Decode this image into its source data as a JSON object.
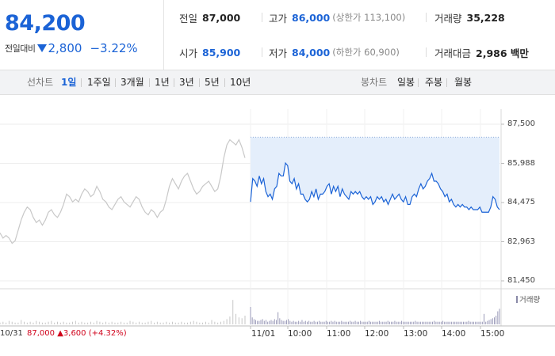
{
  "summary": {
    "price": "84,200",
    "change_label": "전일대비",
    "change_value": "2,800",
    "change_pct": "−3.22%"
  },
  "stats": {
    "prev_close": {
      "label": "전일",
      "value": "87,000"
    },
    "high": {
      "label": "고가",
      "value": "86,000",
      "extra": "(상한가 113,100)"
    },
    "volume": {
      "label": "거래량",
      "value": "35,228"
    },
    "open": {
      "label": "시가",
      "value": "85,900"
    },
    "low": {
      "label": "저가",
      "value": "84,000",
      "extra": "(하한가 60,900)"
    },
    "trade_value": {
      "label": "거래대금",
      "value": "2,986 백만"
    }
  },
  "line_tabs": {
    "label": "선차트",
    "items": [
      "1일",
      "1주일",
      "3개월",
      "1년",
      "3년",
      "5년",
      "10년"
    ],
    "active": "1일"
  },
  "candle_tabs": {
    "label": "봉차트",
    "items": [
      "일봉",
      "주봉",
      "월봉"
    ]
  },
  "chart": {
    "y_ticks": [
      "87,500",
      "85,988",
      "84,475",
      "82,963",
      "81,450"
    ],
    "volume_label": "거래량",
    "prev_day": {
      "date": "10/31",
      "close": "87,000",
      "change": "3,600",
      "pct": "(+4.32%)"
    },
    "x_ticks": [
      "11/01",
      "10:00",
      "11:00",
      "12:00",
      "13:00",
      "14:00",
      "15:00"
    ]
  },
  "colors": {
    "down": "#1b63d6",
    "up": "#d0021b",
    "fill": "#e4eefb",
    "prev_line": "#c8c8c8"
  },
  "chart_data": {
    "type": "line",
    "ylim": [
      81450,
      87500
    ],
    "y_ticks": [
      87500,
      85988,
      84475,
      82963,
      81450
    ],
    "series": [
      {
        "values": [
          83300,
          83100,
          83200,
          83100,
          82900,
          83000,
          83400,
          83800,
          84100,
          84300,
          84200,
          83900,
          83700,
          83800,
          83600,
          83800,
          84100,
          84200,
          84000,
          83900,
          84100,
          84400,
          84800,
          84700,
          84500,
          84600,
          84500,
          84800,
          85000,
          84900,
          84700,
          84800,
          85100,
          84900,
          84600,
          84500,
          84300,
          84200,
          84400,
          84600,
          84700,
          84500,
          84400,
          84300,
          84500,
          84700,
          84600,
          84300,
          84100,
          84000,
          84200,
          84100,
          83900,
          84100,
          84200,
          84600,
          85100,
          85400,
          85200,
          85000,
          85300,
          85500,
          85600,
          85300,
          85000,
          84800,
          84900,
          85100,
          85200,
          85300,
          85100,
          84900,
          85000,
          85500,
          86200,
          86700,
          86900,
          86800,
          86700,
          86900,
          86600,
          86200
        ]
      },
      {
        "values": [
          84500,
          85400,
          85300,
          85100,
          85500,
          85200,
          85400,
          84900,
          84700,
          84800,
          84600,
          85000,
          85100,
          85600,
          85500,
          85500,
          86000,
          85900,
          85300,
          85200,
          85400,
          85000,
          85200,
          84800,
          84800,
          84600,
          84500,
          84600,
          84900,
          84700,
          85000,
          84600,
          84800,
          84800,
          84900,
          85100,
          85200,
          84800,
          85100,
          84900,
          85100,
          84700,
          85000,
          84800,
          84700,
          84600,
          84900,
          84800,
          84900,
          84800,
          84900,
          84700,
          84600,
          84700,
          84600,
          84700,
          84400,
          84500,
          84700,
          84600,
          84700,
          84500,
          84600,
          84400,
          84600,
          84800,
          84600,
          84700,
          84800,
          84600,
          84500,
          84700,
          84400,
          84400,
          84700,
          84800,
          84700,
          85000,
          85200,
          85000,
          85100,
          85300,
          85400,
          85600,
          85300,
          85300,
          85200,
          85000,
          84900,
          84700,
          84800,
          84500,
          84600,
          84400,
          84300,
          84400,
          84300,
          84400,
          84300,
          84300,
          84200,
          84300,
          84200,
          84200,
          84200,
          84300,
          84100,
          84100,
          84100,
          84100,
          84300,
          84700,
          84600,
          84300,
          84200
        ]
      }
    ],
    "volume": {
      "label": "거래량",
      "prev_day": [
        2,
        3,
        2,
        4,
        3,
        2,
        2,
        5,
        3,
        2,
        3,
        2,
        4,
        3,
        2,
        2,
        3,
        4,
        2,
        3,
        2,
        3,
        2,
        2,
        3,
        4,
        2,
        3,
        2,
        2,
        3,
        2,
        4,
        3,
        2,
        3,
        2,
        3,
        2,
        2,
        3,
        2,
        2,
        4,
        3,
        2,
        3,
        2,
        2,
        3,
        4,
        2,
        3,
        2,
        2,
        3,
        2,
        3,
        2,
        2,
        3,
        2,
        2,
        3,
        4,
        3,
        2,
        2,
        3,
        2,
        5,
        3,
        2,
        3,
        4,
        6,
        9,
        28,
        12,
        8,
        7,
        10
      ],
      "today": [
        20,
        8,
        6,
        5,
        4,
        4,
        5,
        6,
        4,
        5,
        3,
        4,
        5,
        4,
        6,
        5,
        14,
        7,
        5,
        4,
        4,
        5,
        6,
        4,
        3,
        4,
        3,
        3,
        4,
        3,
        5,
        3,
        4,
        3,
        4,
        3,
        3,
        4,
        3,
        3,
        4,
        3,
        3,
        3,
        4,
        3,
        3,
        4,
        3,
        4,
        3,
        3,
        3,
        4,
        3,
        3,
        3,
        3,
        4,
        3,
        3,
        4,
        3,
        3,
        4,
        3,
        3,
        3,
        3,
        4,
        3,
        3,
        3,
        3,
        3,
        4,
        3,
        3,
        3,
        3,
        4,
        3,
        3,
        3,
        4,
        3,
        3,
        3,
        4,
        3,
        3,
        3,
        3,
        3,
        3,
        3,
        4,
        3,
        3,
        3,
        3,
        3,
        3,
        3,
        3,
        3,
        3,
        4,
        3,
        3,
        3,
        3,
        4,
        3,
        3,
        3,
        3,
        3,
        3,
        3,
        3,
        3,
        3,
        3,
        3,
        3,
        3,
        4,
        3,
        3,
        3,
        3,
        3,
        3,
        3,
        3,
        12,
        3,
        4,
        5,
        6,
        7,
        8,
        10,
        15,
        18
      ]
    }
  }
}
